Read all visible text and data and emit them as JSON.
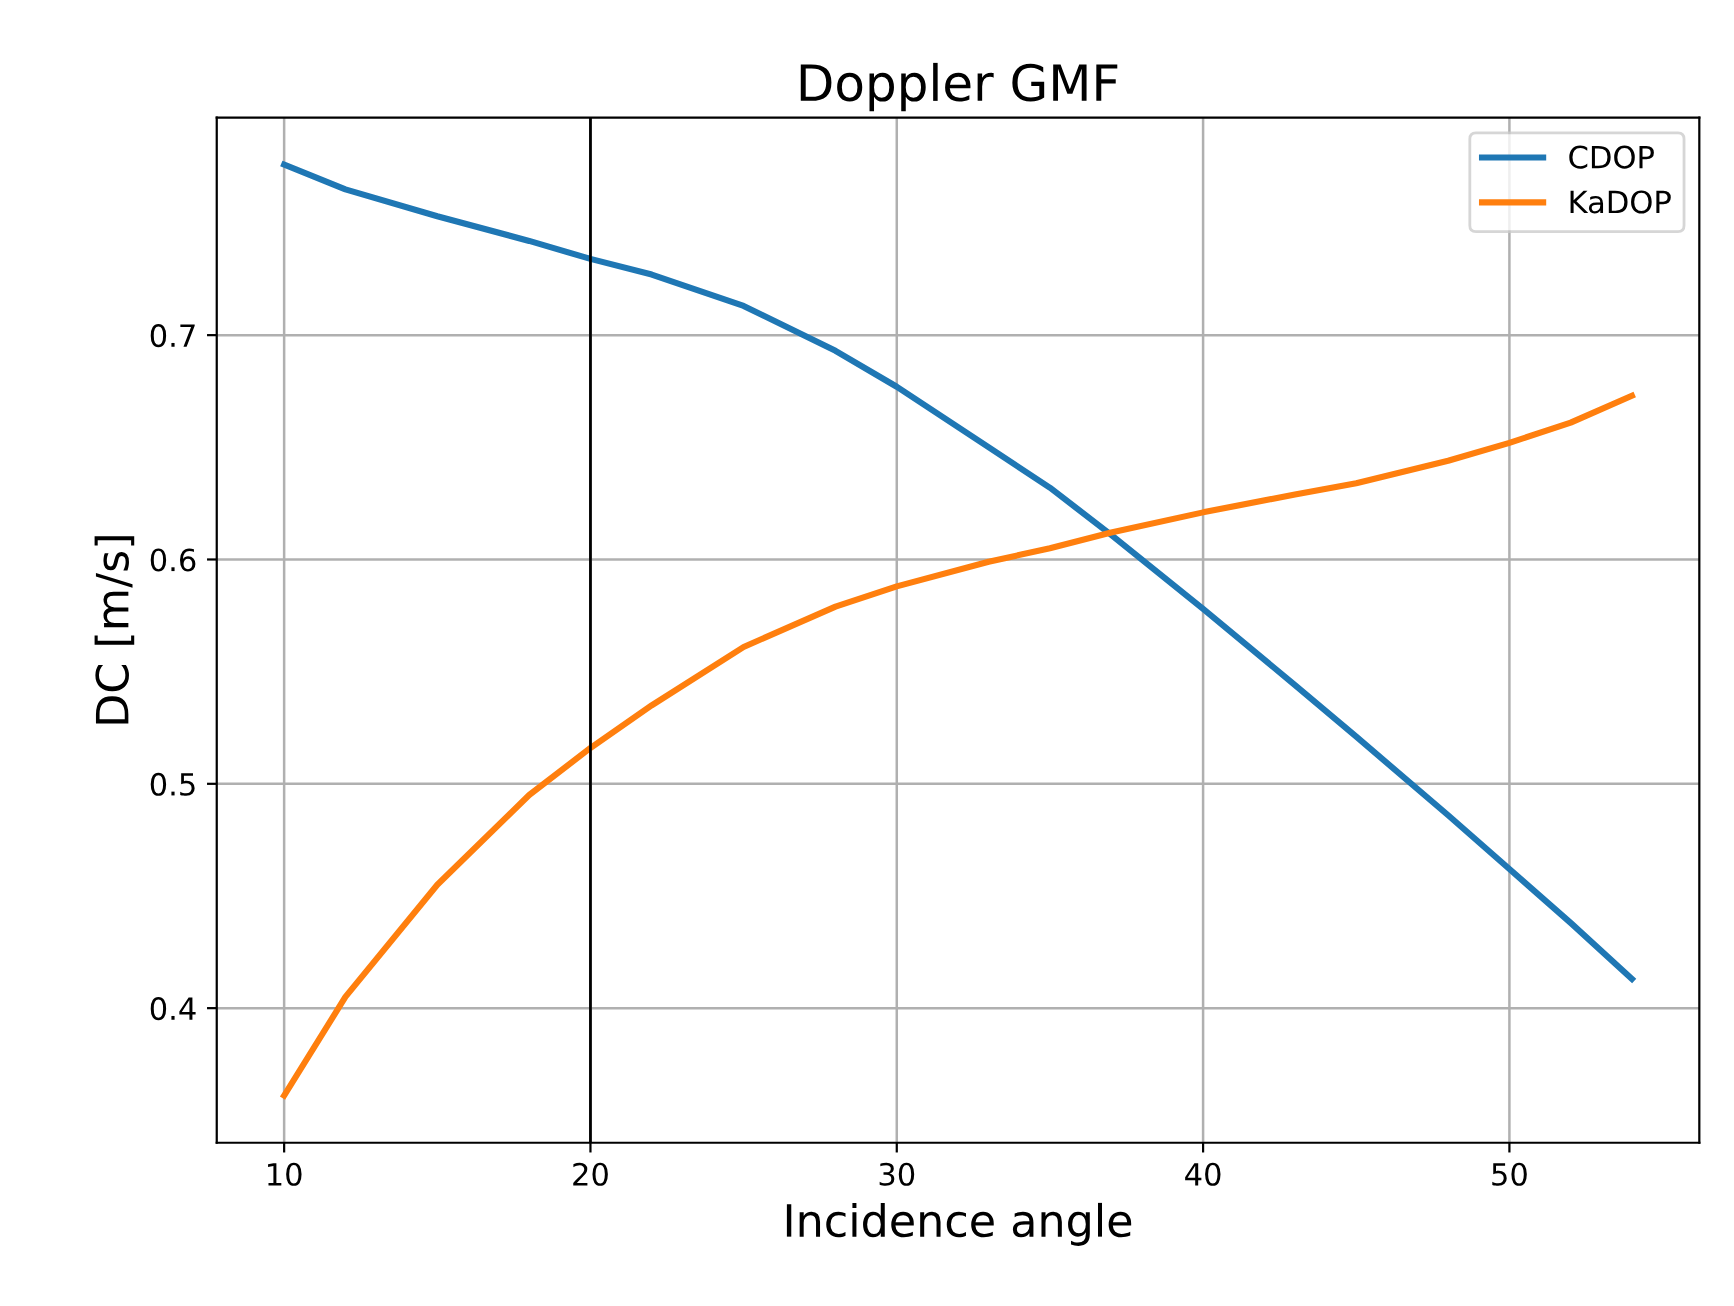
{
  "chart_data": {
    "type": "line",
    "title": "Doppler GMF",
    "xlabel": "Incidence angle",
    "ylabel": "DC [m/s]",
    "x": [
      10,
      12,
      15,
      18,
      20,
      22,
      25,
      28,
      30,
      33,
      35,
      37,
      40,
      43,
      45,
      48,
      50,
      52,
      54
    ],
    "series": [
      {
        "name": "CDOP",
        "color": "#1f77b4",
        "values": [
          0.776,
          0.765,
          0.753,
          0.742,
          0.734,
          0.727,
          0.713,
          0.693,
          0.677,
          0.65,
          0.632,
          0.611,
          0.578,
          0.544,
          0.521,
          0.486,
          0.462,
          0.438,
          0.413
        ]
      },
      {
        "name": "KaDOP",
        "color": "#ff7f0e",
        "values": [
          0.361,
          0.405,
          0.455,
          0.495,
          0.516,
          0.535,
          0.561,
          0.579,
          0.588,
          0.599,
          0.605,
          0.612,
          0.621,
          0.629,
          0.634,
          0.644,
          0.652,
          0.661,
          0.673
        ]
      }
    ],
    "xlim": [
      7.8,
      56.2
    ],
    "ylim": [
      0.34,
      0.797
    ],
    "xticks": [
      10,
      20,
      30,
      40,
      50
    ],
    "yticks": [
      0.4,
      0.5,
      0.6,
      0.7
    ],
    "ref_lines": [
      {
        "axis": "x",
        "value": 20,
        "color": "#000000"
      }
    ],
    "grid": true,
    "legend": "top right"
  }
}
